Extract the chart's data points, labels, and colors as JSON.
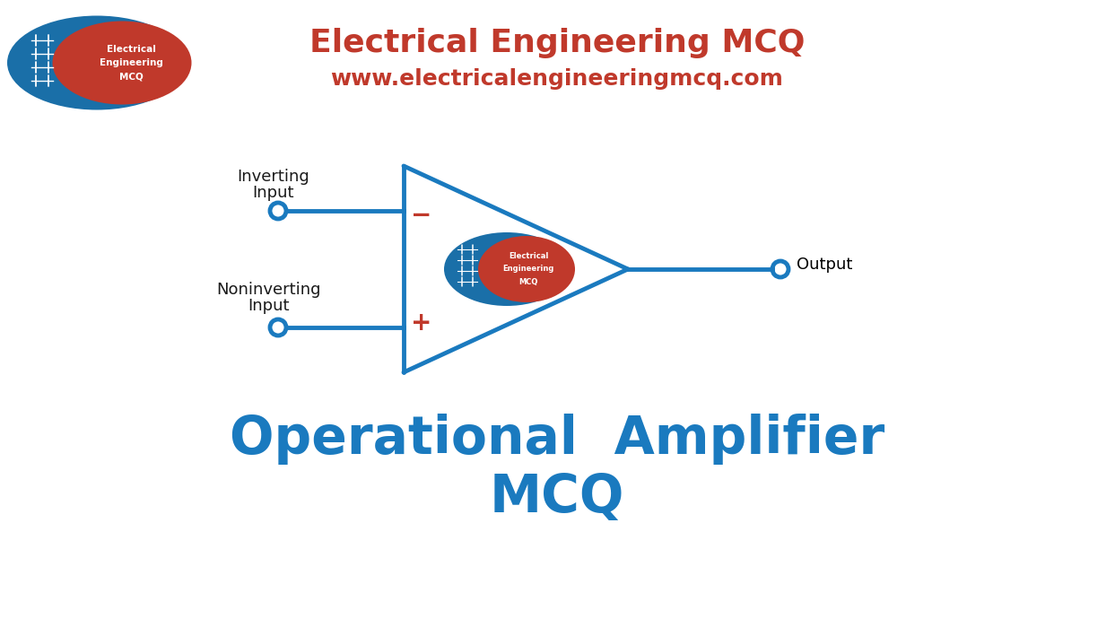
{
  "bg_color": "#ffffff",
  "title_line1": "Electrical Engineering MCQ",
  "title_line2": "www.electricalengineeringmcq.com",
  "title_color": "#c0392b",
  "bottom_title_line1": "Operational  Amplifier",
  "bottom_title_line2": "MCQ",
  "bottom_title_color": "#1a7abf",
  "opamp_color": "#1a7abf",
  "opamp_lw": 3.5,
  "plus_minus_color": "#c0392b",
  "label_color": "#1a1a1a",
  "output_label_color": "#000000",
  "logo_blue": "#1a6fa8",
  "logo_red": "#c0392b",
  "inner_label_line1": "Electrical",
  "inner_label_line2": "Engineering",
  "inner_label_line3": "MCQ",
  "output_label": "Output",
  "fig_w": 12.43,
  "fig_h": 6.9,
  "dpi": 100
}
